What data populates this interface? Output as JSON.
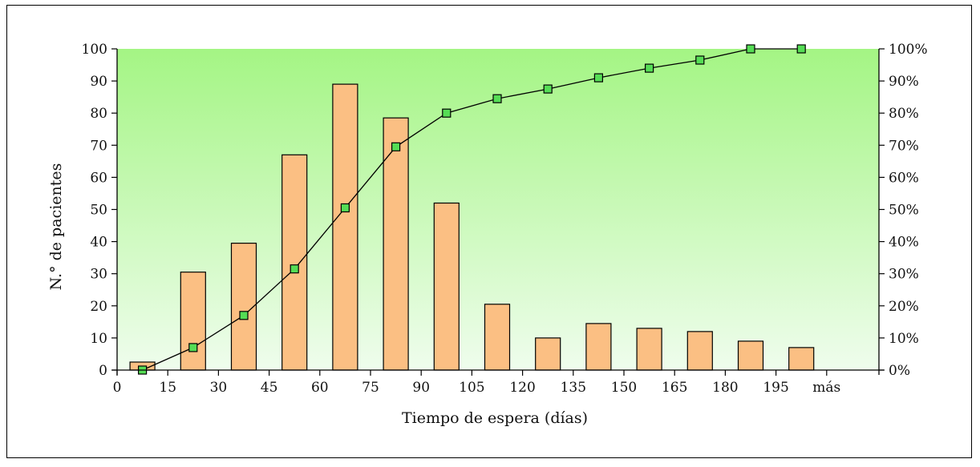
{
  "chart_data": {
    "type": "bar+line",
    "title": "",
    "xlabel": "Tiempo de espera (días)",
    "ylabel": "N.° de pacientes",
    "ylim": [
      0,
      100
    ],
    "y2lim": [
      0,
      100
    ],
    "y_ticks": [
      "0",
      "10",
      "20",
      "30",
      "40",
      "50",
      "60",
      "70",
      "80",
      "90",
      "100"
    ],
    "y2_ticks": [
      "0%",
      "10%",
      "20%",
      "30%",
      "40%",
      "50%",
      "60%",
      "70%",
      "80%",
      "90%",
      "100%"
    ],
    "x_ticks": [
      "0",
      "15",
      "30",
      "45",
      "60",
      "75",
      "90",
      "105",
      "120",
      "135",
      "150",
      "165",
      "180",
      "195",
      "más"
    ],
    "bars": {
      "name": "",
      "values": [
        2.5,
        30.5,
        39.5,
        67,
        89,
        78.5,
        52,
        20.5,
        10,
        14.5,
        13,
        12,
        9,
        7
      ],
      "color": "#fbbf83",
      "edge": "#000000"
    },
    "cumulative": {
      "name": "",
      "values_percent": [
        0,
        7,
        17,
        31.5,
        50.5,
        69.5,
        80,
        84.5,
        87.5,
        91,
        94,
        96.5,
        100,
        100
      ],
      "marker_color": "#55dd55",
      "line_color": "#000000"
    },
    "background_gradient": [
      "#a4f584",
      "#effded"
    ],
    "grid": false
  }
}
